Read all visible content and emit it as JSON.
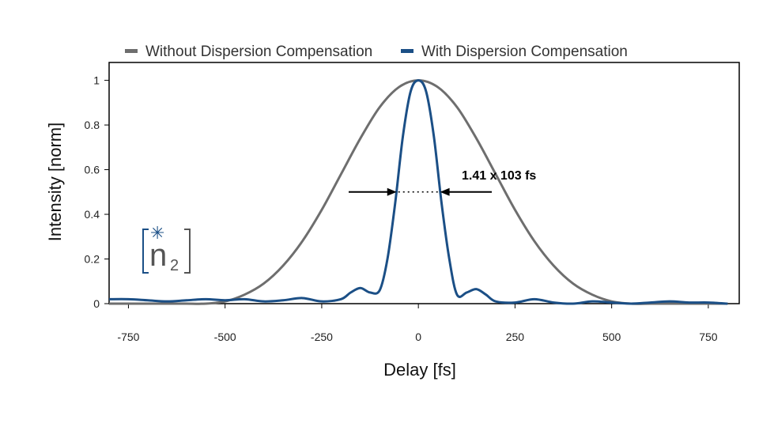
{
  "chart_data": {
    "type": "line",
    "title": "",
    "xlabel": "Delay [fs]",
    "ylabel": "Intensity [norm]",
    "xlim": [
      -800,
      830
    ],
    "ylim": [
      0,
      1.08
    ],
    "xticks": [
      -750,
      -500,
      -250,
      0,
      250,
      500,
      750
    ],
    "xtick_labels": [
      "-750",
      "-500",
      "-250",
      "0",
      "250",
      "500",
      "750"
    ],
    "yticks": [
      0,
      0.2,
      0.4,
      0.6,
      0.8,
      1
    ],
    "ytick_labels": [
      "0",
      "0.2",
      "0.4",
      "0.6",
      "0.8",
      "1"
    ],
    "legend_position": "top",
    "series": [
      {
        "name": "Without Dispersion Compensation",
        "color": "#6e6e6e",
        "x": [
          -800,
          -750,
          -700,
          -650,
          -600,
          -550,
          -500,
          -450,
          -400,
          -350,
          -300,
          -250,
          -200,
          -150,
          -100,
          -50,
          0,
          50,
          100,
          150,
          200,
          250,
          300,
          350,
          400,
          450,
          500,
          550,
          600,
          650,
          700,
          750,
          800
        ],
        "values": [
          0.0,
          0.0,
          0.0,
          0.0,
          0.0,
          0.0,
          0.01,
          0.04,
          0.09,
          0.17,
          0.28,
          0.42,
          0.58,
          0.74,
          0.88,
          0.97,
          1.0,
          0.97,
          0.88,
          0.74,
          0.58,
          0.42,
          0.28,
          0.17,
          0.09,
          0.04,
          0.01,
          0.0,
          0.0,
          0.0,
          0.0,
          0.0,
          0.0
        ]
      },
      {
        "name": "With Dispersion Compensation",
        "color": "#1b4f86",
        "x": [
          -800,
          -750,
          -700,
          -650,
          -600,
          -550,
          -500,
          -450,
          -400,
          -350,
          -300,
          -250,
          -200,
          -175,
          -150,
          -125,
          -100,
          -80,
          -60,
          -40,
          -20,
          0,
          20,
          40,
          60,
          80,
          100,
          125,
          150,
          175,
          200,
          250,
          300,
          350,
          400,
          450,
          500,
          550,
          600,
          650,
          700,
          750,
          800
        ],
        "values": [
          0.02,
          0.02,
          0.015,
          0.01,
          0.015,
          0.02,
          0.015,
          0.02,
          0.01,
          0.015,
          0.025,
          0.01,
          0.02,
          0.05,
          0.07,
          0.05,
          0.06,
          0.2,
          0.45,
          0.75,
          0.95,
          1.0,
          0.95,
          0.75,
          0.45,
          0.2,
          0.04,
          0.05,
          0.065,
          0.04,
          0.01,
          0.005,
          0.02,
          0.005,
          0.0,
          0.01,
          0.005,
          0.0,
          0.005,
          0.01,
          0.005,
          0.005,
          0.0
        ]
      }
    ],
    "annotation": {
      "text": "1.41 x 103 fs",
      "fwhm_level": 0.5,
      "fwhm_left": -52,
      "fwhm_right": 52
    }
  },
  "logo": {
    "star": "✳",
    "letter": "n",
    "subscript": "2"
  }
}
